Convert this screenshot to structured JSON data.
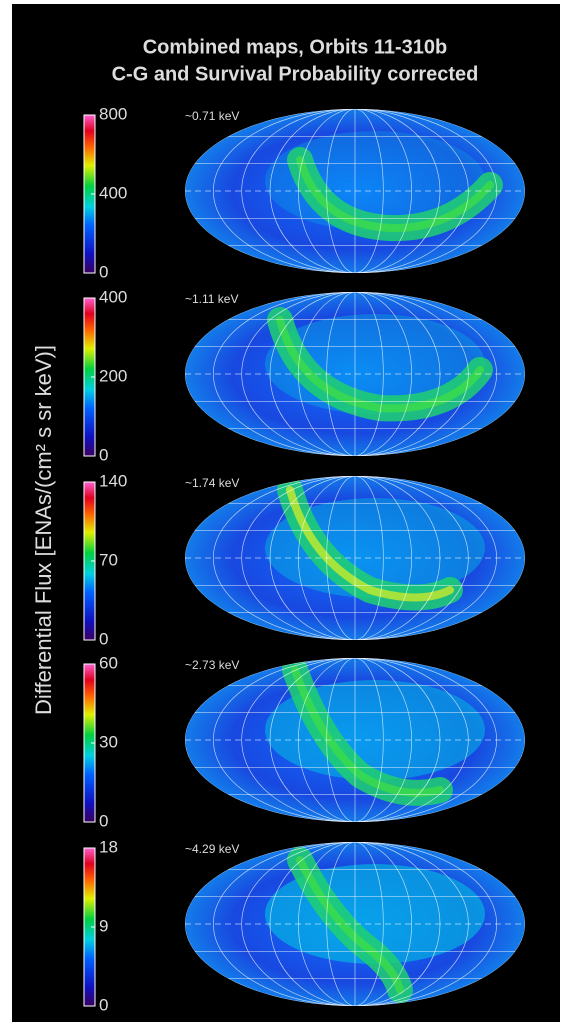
{
  "title": [
    "Combined maps, Orbits 11-310b",
    "C-G and Survival Probability corrected"
  ],
  "colorbar_label": "Differential Flux [ENAs/(cm² s sr keV)]",
  "panels": [
    {
      "energy": "~0.71 keV",
      "ticks": [
        0,
        400,
        800
      ]
    },
    {
      "energy": "~1.11 keV",
      "ticks": [
        0,
        200,
        400
      ]
    },
    {
      "energy": "~1.74 keV",
      "ticks": [
        0,
        70,
        140
      ]
    },
    {
      "energy": "~2.73 keV",
      "ticks": [
        0,
        30,
        60
      ]
    },
    {
      "energy": "~4.29 keV",
      "ticks": [
        0,
        9,
        18
      ]
    }
  ]
}
